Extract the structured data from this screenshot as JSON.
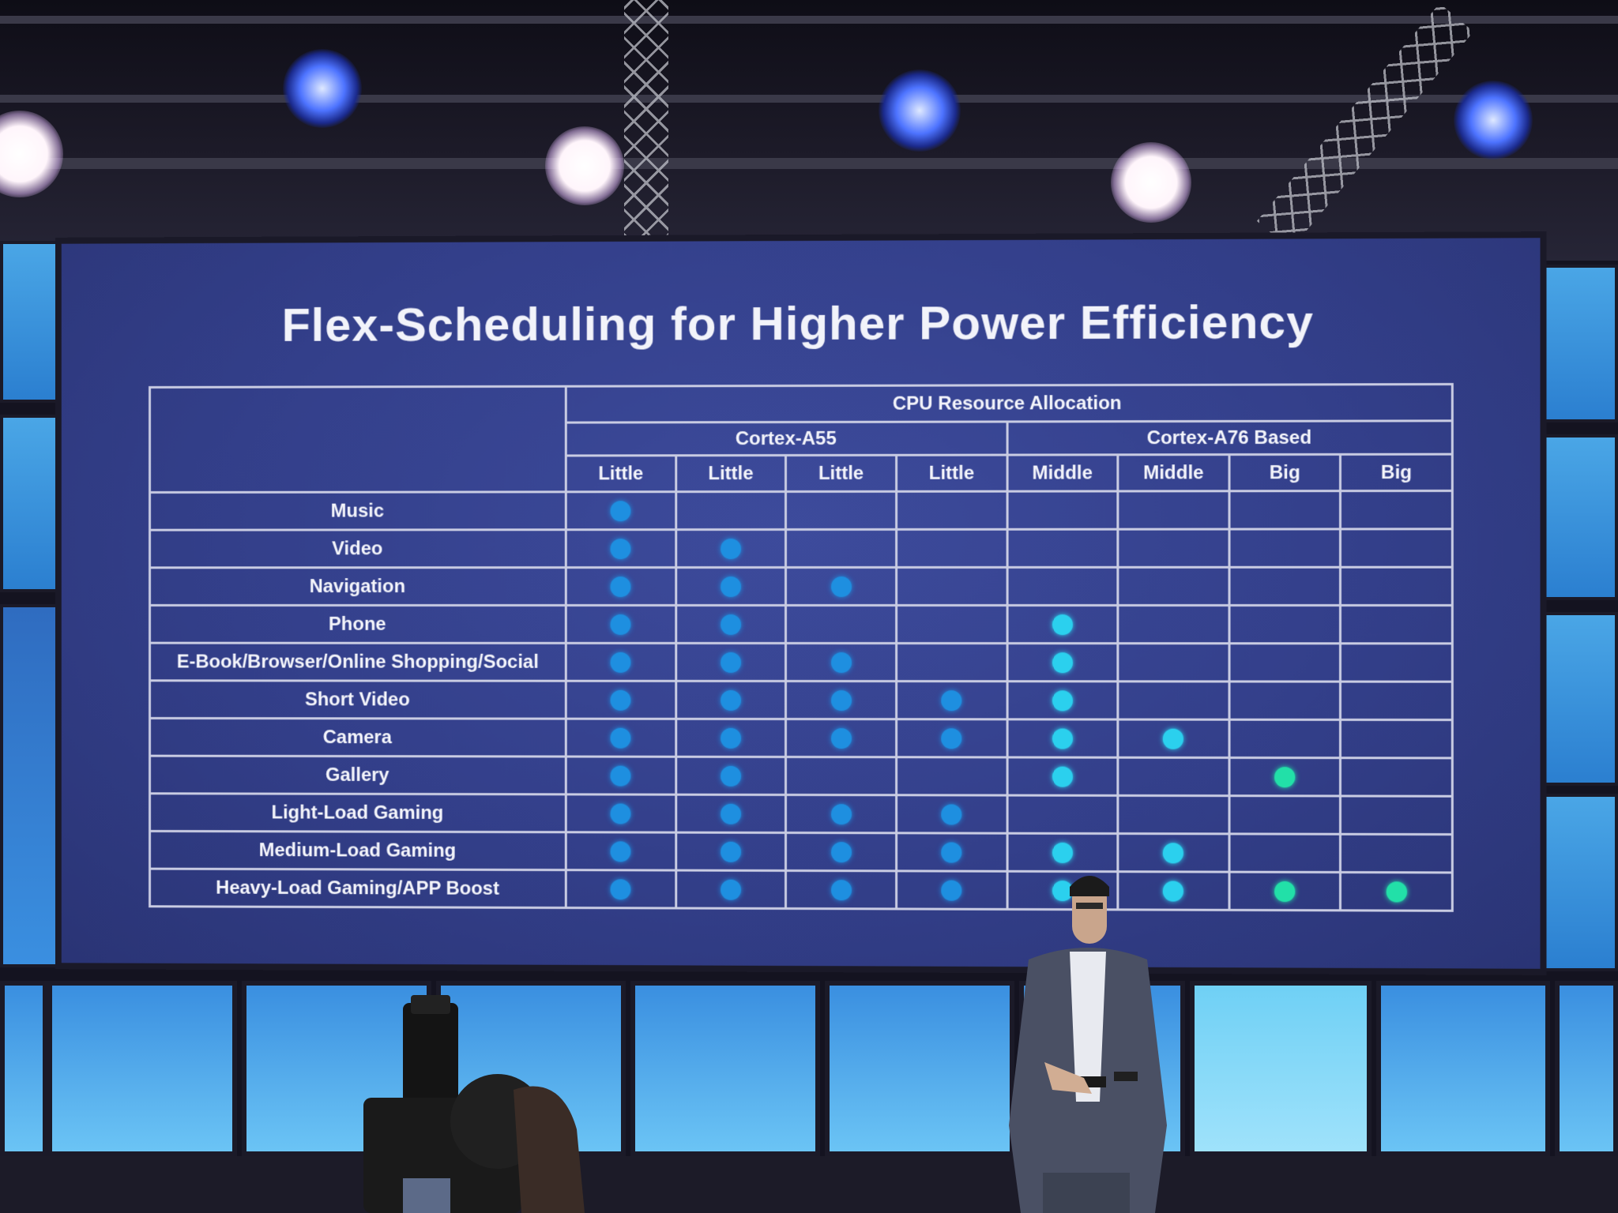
{
  "slide": {
    "title": "Flex-Scheduling for Higher Power Efficiency",
    "header": {
      "group": "CPU Resource Allocation",
      "clusters": [
        {
          "label": "Cortex-A55",
          "span": 4
        },
        {
          "label": "Cortex-A76 Based",
          "span": 4
        }
      ],
      "cores": [
        "Little",
        "Little",
        "Little",
        "Little",
        "Middle",
        "Middle",
        "Big",
        "Big"
      ]
    },
    "rows": [
      {
        "label": "Music",
        "cores": [
          1,
          0,
          0,
          0,
          0,
          0,
          0,
          0
        ]
      },
      {
        "label": "Video",
        "cores": [
          1,
          1,
          0,
          0,
          0,
          0,
          0,
          0
        ]
      },
      {
        "label": "Navigation",
        "cores": [
          1,
          1,
          1,
          0,
          0,
          0,
          0,
          0
        ]
      },
      {
        "label": "Phone",
        "cores": [
          1,
          1,
          0,
          0,
          1,
          0,
          0,
          0
        ]
      },
      {
        "label": "E-Book/Browser/Online Shopping/Social",
        "cores": [
          1,
          1,
          1,
          0,
          1,
          0,
          0,
          0
        ]
      },
      {
        "label": "Short Video",
        "cores": [
          1,
          1,
          1,
          1,
          1,
          0,
          0,
          0
        ]
      },
      {
        "label": "Camera",
        "cores": [
          1,
          1,
          1,
          1,
          1,
          1,
          0,
          0
        ]
      },
      {
        "label": "Gallery",
        "cores": [
          1,
          1,
          0,
          0,
          1,
          0,
          1,
          0
        ]
      },
      {
        "label": "Light-Load Gaming",
        "cores": [
          1,
          1,
          1,
          1,
          0,
          0,
          0,
          0
        ]
      },
      {
        "label": "Medium-Load Gaming",
        "cores": [
          1,
          1,
          1,
          1,
          1,
          1,
          0,
          0
        ]
      },
      {
        "label": "Heavy-Load Gaming/APP Boost",
        "cores": [
          1,
          1,
          1,
          1,
          1,
          1,
          1,
          1
        ]
      }
    ],
    "dot_colors": {
      "Little": "#1e8fe0",
      "Middle": "#2bd0ee",
      "Big": "#22e0a8"
    }
  }
}
